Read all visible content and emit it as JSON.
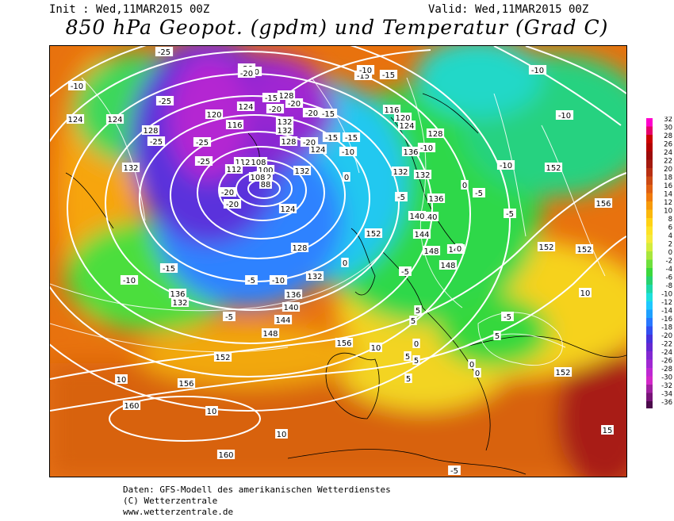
{
  "header": {
    "init": "Init : Wed,11MAR2015 00Z",
    "valid": "Valid: Wed,11MAR2015 00Z",
    "title": "850 hPa Geopot. (gpdm) und Temperatur (Grad C)"
  },
  "footer": {
    "line1": "Daten: GFS-Modell des amerikanischen Wetterdienstes",
    "line2": "(C) Wetterzentrale",
    "line3": "www.wetterzentrale.de"
  },
  "color_scale": {
    "labels": [
      "32",
      "30",
      "28",
      "26",
      "24",
      "22",
      "20",
      "18",
      "16",
      "14",
      "12",
      "10",
      "8",
      "6",
      "4",
      "2",
      "0",
      "-2",
      "-4",
      "-6",
      "-8",
      "-10",
      "-12",
      "-14",
      "-16",
      "-18",
      "-20",
      "-22",
      "-24",
      "-26",
      "-28",
      "-30",
      "-32",
      "-34",
      "-36"
    ],
    "colors": [
      "#ff00cc",
      "#e6006b",
      "#cc0000",
      "#b30000",
      "#9c0a0a",
      "#a31a0f",
      "#b82f12",
      "#cc4a14",
      "#e06012",
      "#f07a0c",
      "#f79a0a",
      "#fbb80c",
      "#ffd214",
      "#fde226",
      "#f5ea3c",
      "#d4ec3c",
      "#a8e63c",
      "#6ee03c",
      "#3cd83c",
      "#28d270",
      "#1ed8a8",
      "#1ee0dc",
      "#1ec8ff",
      "#1ea0ff",
      "#2878ff",
      "#3250f0",
      "#4632dc",
      "#6428d2",
      "#8228d2",
      "#a028d2",
      "#be28d2",
      "#d228c8",
      "#a020a0",
      "#781478",
      "#4b0a4b"
    ]
  },
  "map": {
    "height_labels": [
      {
        "t": "124"
      },
      {
        "t": "128"
      },
      {
        "t": "132"
      },
      {
        "t": "124"
      },
      {
        "t": "112"
      },
      {
        "t": "108"
      },
      {
        "t": "100"
      },
      {
        "t": "92"
      },
      {
        "t": "88"
      },
      {
        "t": "116"
      },
      {
        "t": "120"
      },
      {
        "t": "124"
      },
      {
        "t": "128"
      },
      {
        "t": "132"
      },
      {
        "t": "132"
      },
      {
        "t": "128"
      },
      {
        "t": "132"
      },
      {
        "t": "112"
      },
      {
        "t": "108"
      },
      {
        "t": "116"
      },
      {
        "t": "120"
      },
      {
        "t": "124"
      },
      {
        "t": "128"
      },
      {
        "t": "132"
      },
      {
        "t": "136"
      },
      {
        "t": "140"
      },
      {
        "t": "144"
      },
      {
        "t": "148"
      },
      {
        "t": "152"
      },
      {
        "t": "156"
      },
      {
        "t": "132"
      },
      {
        "t": "136"
      },
      {
        "t": "140"
      },
      {
        "t": "144"
      },
      {
        "t": "148"
      },
      {
        "t": "152"
      },
      {
        "t": "156"
      },
      {
        "t": "160"
      },
      {
        "t": "160"
      },
      {
        "t": "136"
      },
      {
        "t": "132"
      },
      {
        "t": "124"
      },
      {
        "t": "136"
      },
      {
        "t": "132"
      },
      {
        "t": "140"
      },
      {
        "t": "144"
      },
      {
        "t": "148"
      },
      {
        "t": "152"
      },
      {
        "t": "156"
      },
      {
        "t": "152"
      },
      {
        "t": "152"
      },
      {
        "t": "152"
      },
      {
        "t": "128"
      },
      {
        "t": "124"
      }
    ],
    "temp_labels": [
      {
        "t": "-25"
      },
      {
        "t": "-20"
      },
      {
        "t": "-20"
      },
      {
        "t": "-20"
      },
      {
        "t": "-15"
      },
      {
        "t": "-20"
      },
      {
        "t": "-10"
      },
      {
        "t": "-25"
      },
      {
        "t": "-25"
      },
      {
        "t": "-20"
      },
      {
        "t": "-15"
      },
      {
        "t": "-25"
      },
      {
        "t": "-25"
      },
      {
        "t": "-20"
      },
      {
        "t": "-20"
      },
      {
        "t": "-20"
      },
      {
        "t": "-15"
      },
      {
        "t": "-20"
      },
      {
        "t": "-15"
      },
      {
        "t": "-10"
      },
      {
        "t": "-15"
      },
      {
        "t": "-10"
      },
      {
        "t": "-10"
      },
      {
        "t": "-15"
      },
      {
        "t": "-10"
      },
      {
        "t": "-10"
      },
      {
        "t": "-10"
      },
      {
        "t": "-5"
      },
      {
        "t": "-5"
      },
      {
        "t": "-5"
      },
      {
        "t": "-10"
      },
      {
        "t": "-5"
      },
      {
        "t": "-5"
      },
      {
        "t": "0"
      },
      {
        "t": "0"
      },
      {
        "t": "0"
      },
      {
        "t": "5"
      },
      {
        "t": "5"
      },
      {
        "t": "0"
      },
      {
        "t": "-5"
      },
      {
        "t": "0"
      },
      {
        "t": "0"
      },
      {
        "t": "10"
      },
      {
        "t": "10"
      },
      {
        "t": "10"
      },
      {
        "t": "10"
      },
      {
        "t": "5"
      },
      {
        "t": "5"
      },
      {
        "t": "5"
      },
      {
        "t": "10"
      },
      {
        "t": "15"
      },
      {
        "t": "-10"
      },
      {
        "t": "-15"
      },
      {
        "t": "-5"
      },
      {
        "t": "0"
      },
      {
        "t": "5"
      },
      {
        "t": "-5"
      }
    ]
  }
}
